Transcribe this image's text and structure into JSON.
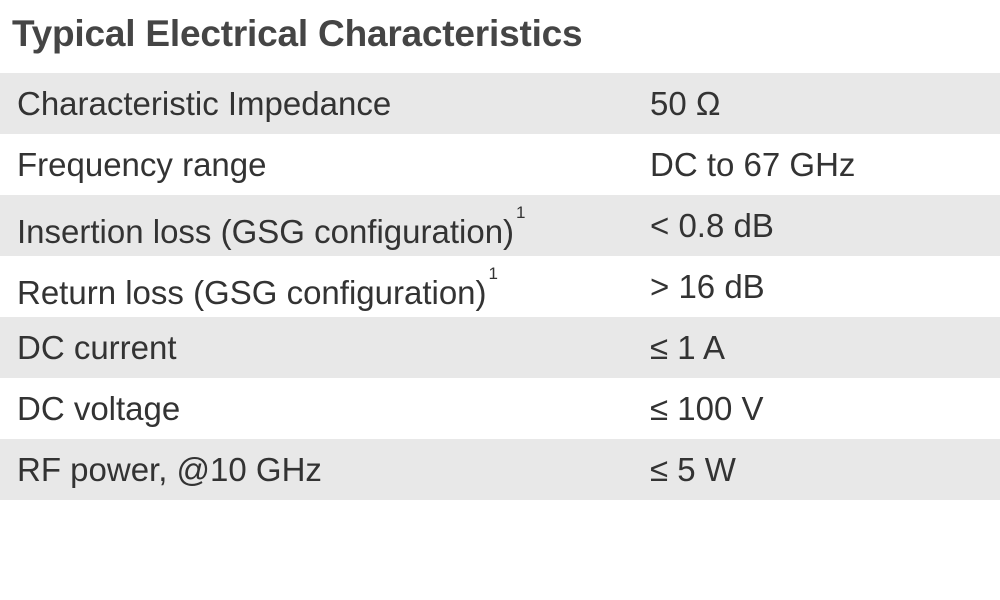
{
  "title": "Typical Electrical Characteristics",
  "rows": [
    {
      "label": "Characteristic Impedance",
      "note": "",
      "value": "50 Ω"
    },
    {
      "label": "Frequency range",
      "note": "",
      "value": "DC to 67 GHz"
    },
    {
      "label": "Insertion loss (GSG configuration)",
      "note": "1",
      "value": "< 0.8 dB"
    },
    {
      "label": "Return loss (GSG configuration)",
      "note": "1",
      "value": "> 16 dB"
    },
    {
      "label": "DC current",
      "note": "",
      "value": "≤ 1 A"
    },
    {
      "label": "DC voltage",
      "note": "",
      "value": "≤ 100 V"
    },
    {
      "label": "RF power, @10 GHz",
      "note": "",
      "value": "≤ 5 W"
    }
  ],
  "colors": {
    "shaded_row": "#e8e8e8",
    "text": "#333333",
    "title": "#454545"
  }
}
